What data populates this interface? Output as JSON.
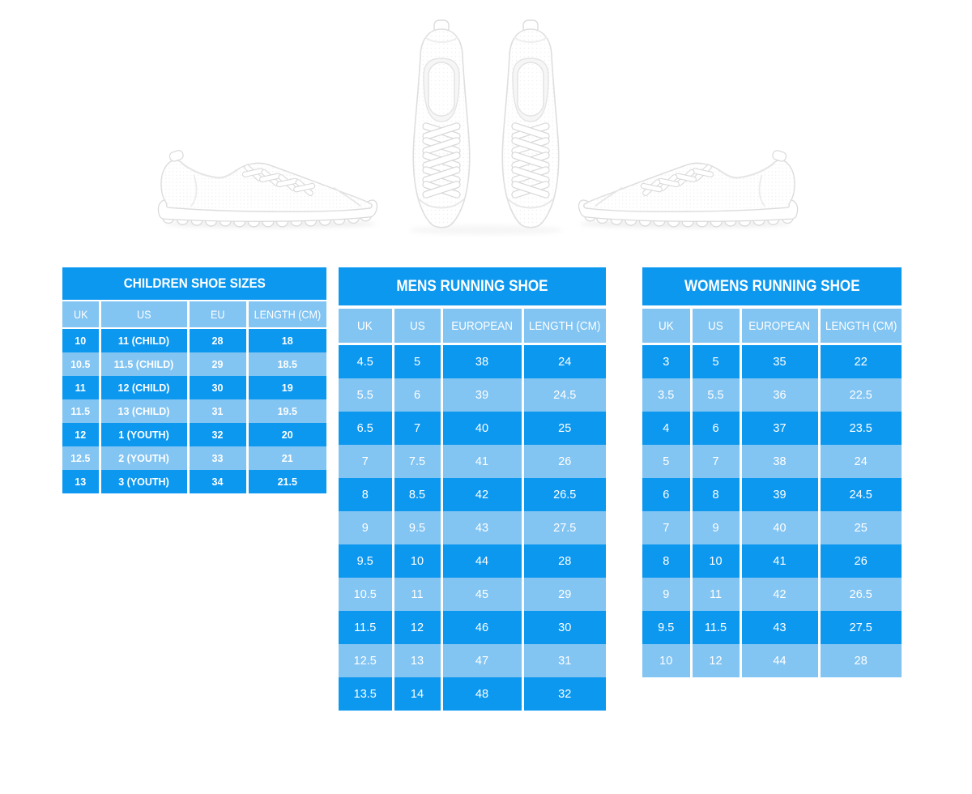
{
  "page": {
    "background": "#ffffff"
  },
  "colors": {
    "primary_blue": "#0d98f0",
    "light_blue": "#82c4f2",
    "text_white": "#ffffff",
    "shoe_outline_gray": "#dddddd"
  },
  "images": {
    "left_shoe": "white-running-shoe-side-view-facing-right",
    "center_shoes": "white-running-shoes-pair-top-view",
    "right_shoe": "white-running-shoe-side-view-facing-left"
  },
  "tables": [
    {
      "id": "children",
      "title": "CHILDREN SHOE SIZES",
      "columns": [
        "UK",
        "US",
        "EU",
        "LENGTH (CM)"
      ],
      "rows": [
        [
          "10",
          "11 (CHILD)",
          "28",
          "18"
        ],
        [
          "10.5",
          "11.5 (CHILD)",
          "29",
          "18.5"
        ],
        [
          "11",
          "12 (CHILD)",
          "30",
          "19"
        ],
        [
          "11.5",
          "13 (CHILD)",
          "31",
          "19.5"
        ],
        [
          "12",
          "1 (YOUTH)",
          "32",
          "20"
        ],
        [
          "12.5",
          "2 (YOUTH)",
          "33",
          "21"
        ],
        [
          "13",
          "3 (YOUTH)",
          "34",
          "21.5"
        ]
      ]
    },
    {
      "id": "mens",
      "title": "MENS RUNNING SHOE",
      "columns": [
        "UK",
        "US",
        "EUROPEAN",
        "LENGTH (CM)"
      ],
      "rows": [
        [
          "4.5",
          "5",
          "38",
          "24"
        ],
        [
          "5.5",
          "6",
          "39",
          "24.5"
        ],
        [
          "6.5",
          "7",
          "40",
          "25"
        ],
        [
          "7",
          "7.5",
          "41",
          "26"
        ],
        [
          "8",
          "8.5",
          "42",
          "26.5"
        ],
        [
          "9",
          "9.5",
          "43",
          "27.5"
        ],
        [
          "9.5",
          "10",
          "44",
          "28"
        ],
        [
          "10.5",
          "11",
          "45",
          "29"
        ],
        [
          "11.5",
          "12",
          "46",
          "30"
        ],
        [
          "12.5",
          "13",
          "47",
          "31"
        ],
        [
          "13.5",
          "14",
          "48",
          "32"
        ]
      ]
    },
    {
      "id": "womens",
      "title": "WOMENS RUNNING SHOE",
      "columns": [
        "UK",
        "US",
        "EUROPEAN",
        "LENGTH (CM)"
      ],
      "rows": [
        [
          "3",
          "5",
          "35",
          "22"
        ],
        [
          "3.5",
          "5.5",
          "36",
          "22.5"
        ],
        [
          "4",
          "6",
          "37",
          "23.5"
        ],
        [
          "5",
          "7",
          "38",
          "24"
        ],
        [
          "6",
          "8",
          "39",
          "24.5"
        ],
        [
          "7",
          "9",
          "40",
          "25"
        ],
        [
          "8",
          "10",
          "41",
          "26"
        ],
        [
          "9",
          "11",
          "42",
          "26.5"
        ],
        [
          "9.5",
          "11.5",
          "43",
          "27.5"
        ],
        [
          "10",
          "12",
          "44",
          "28"
        ]
      ]
    }
  ]
}
